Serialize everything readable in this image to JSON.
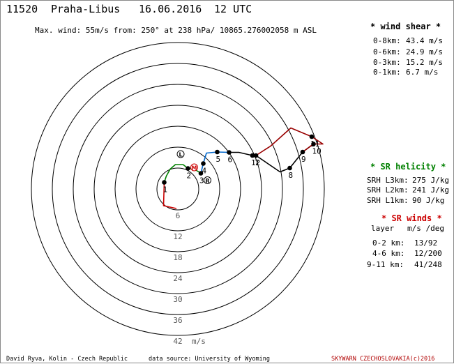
{
  "header": {
    "station_id": "11520",
    "station_name": "Praha-Libus",
    "date": "16.06.2016",
    "time": "12 UTC",
    "max_wind": "Max. wind: 55m/s from: 250° at 238 hPa/ 10865.276002058 m ASL"
  },
  "wind_shear": {
    "title": "* wind shear *",
    "rows": [
      {
        "label": "0-8km:",
        "value": "43.4 m/s"
      },
      {
        "label": "0-6km:",
        "value": "24.9 m/s"
      },
      {
        "label": "0-3km:",
        "value": "15.2 m/s"
      },
      {
        "label": "0-1km:",
        "value": "6.7 m/s"
      }
    ]
  },
  "sr_helicity": {
    "title": "* SR helicity *",
    "rows": [
      {
        "label": "SRH L3km:",
        "value": "275 J/kg"
      },
      {
        "label": "SRH L2km:",
        "value": "241 J/kg"
      },
      {
        "label": "SRH L1km:",
        "value": " 90 J/kg"
      }
    ]
  },
  "sr_winds": {
    "title": "* SR winds *",
    "col_layer": "layer",
    "col_unit": "m/s /deg",
    "rows": [
      {
        "label": "0-2 km:",
        "value": "13/92"
      },
      {
        "label": "4-6 km:",
        "value": "12/200"
      },
      {
        "label": "9-11 km:",
        "value": "41/248"
      }
    ]
  },
  "footer": {
    "author": "David Ryva, Kolin - Czech Republic",
    "source": "data source: University of Wyoming",
    "brand": "SKYWARN CZECHOSLOVAKIA(c)2016"
  },
  "colors": {
    "seg_0_1km": "#cc0000",
    "seg_1_3km": "#008000",
    "seg_3_5km": "#0066cc",
    "seg_5_8km": "#000000",
    "seg_8_12km": "#990000",
    "rings": "#000000",
    "storm_marker": "#cc0000"
  },
  "chart_data": {
    "type": "hodograph",
    "ring_unit": "m/s",
    "ring_values": [
      6,
      12,
      18,
      24,
      30,
      36,
      42
    ],
    "ring_labels": [
      "6",
      "12",
      "18",
      "24",
      "30",
      "36",
      "42"
    ],
    "height_marks": [
      {
        "label": "1",
        "u": -3.9,
        "v": 1.9
      },
      {
        "label": "2",
        "u": 2.9,
        "v": 5.9
      },
      {
        "label": "3",
        "u": 6.6,
        "v": 4.5
      },
      {
        "label": "4",
        "u": 7.3,
        "v": 7.3
      },
      {
        "label": "5",
        "u": 11.3,
        "v": 10.6
      },
      {
        "label": "6",
        "u": 14.7,
        "v": 10.5
      },
      {
        "label": "7",
        "u": 22.4,
        "v": 9.6
      },
      {
        "label": "8",
        "u": 32.1,
        "v": 6.0
      },
      {
        "label": "9",
        "u": 35.8,
        "v": 10.6
      },
      {
        "label": "10",
        "u": 38.9,
        "v": 12.9
      },
      {
        "label": "11",
        "u": 38.4,
        "v": 15.0
      },
      {
        "label": "12",
        "u": 21.4,
        "v": 9.6
      }
    ],
    "segments": [
      {
        "layer": "0-1 km",
        "color": "#cc0000",
        "points": [
          [
            -0.4,
            -5.6
          ],
          [
            -4.1,
            -4.8
          ],
          [
            -3.9,
            1.9
          ]
        ]
      },
      {
        "layer": "1-3 km",
        "color": "#008000",
        "points": [
          [
            -3.9,
            1.9
          ],
          [
            -3.3,
            3.7
          ],
          [
            -2.2,
            5.7
          ],
          [
            -0.7,
            7.0
          ],
          [
            1.5,
            7.0
          ],
          [
            2.9,
            5.9
          ],
          [
            4.9,
            5.6
          ],
          [
            6.6,
            4.5
          ]
        ]
      },
      {
        "layer": "3-5 km",
        "color": "#0066cc",
        "points": [
          [
            6.6,
            4.5
          ],
          [
            7.3,
            7.3
          ],
          [
            8.2,
            10.3
          ],
          [
            11.3,
            10.6
          ],
          [
            14.7,
            10.5
          ]
        ]
      },
      {
        "layer": "5-8 km",
        "color": "#000000",
        "points": [
          [
            14.7,
            10.5
          ],
          [
            17.5,
            10.5
          ],
          [
            21.4,
            9.6
          ],
          [
            22.4,
            9.6
          ],
          [
            29.3,
            4.9
          ],
          [
            32.1,
            6.0
          ],
          [
            35.8,
            10.6
          ],
          [
            38.9,
            12.9
          ]
        ]
      },
      {
        "layer": "8-12 km",
        "color": "#990000",
        "points": [
          [
            22.4,
            9.6
          ],
          [
            26.6,
            12.3
          ],
          [
            32.4,
            17.5
          ],
          [
            38.4,
            15.0
          ],
          [
            41.6,
            12.9
          ],
          [
            38.9,
            12.9
          ],
          [
            35.8,
            10.6
          ]
        ]
      }
    ],
    "storm_markers": [
      {
        "label": "L",
        "u": 0.8,
        "v": 10.0
      },
      {
        "label": "M",
        "u": 4.7,
        "v": 6.2
      },
      {
        "label": "R",
        "u": 8.5,
        "v": 2.5
      }
    ]
  }
}
